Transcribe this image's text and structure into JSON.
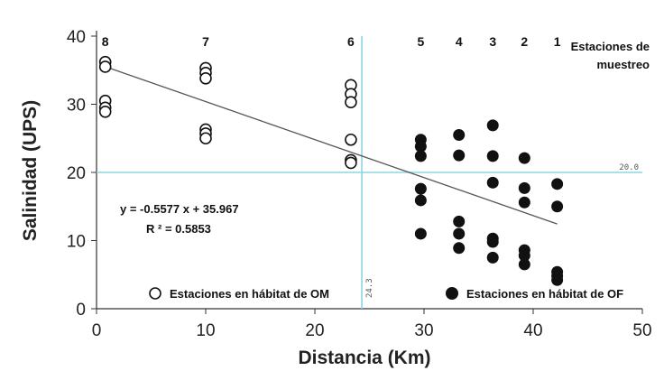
{
  "chart_data": {
    "type": "scatter",
    "xlabel": "Distancia (Km)",
    "ylabel": "Salinidad (UPS)",
    "xlim": [
      0,
      50
    ],
    "ylim": [
      0,
      40
    ],
    "xticks": [
      0,
      10,
      20,
      30,
      40,
      50
    ],
    "yticks": [
      0,
      10,
      20,
      30,
      40
    ],
    "grid": false,
    "series": [
      {
        "name": "Estaciones en hábitat de OM",
        "marker": "open-circle",
        "color": "#111111",
        "points": [
          [
            0.8,
            36.2
          ],
          [
            0.8,
            35.5
          ],
          [
            0.8,
            30.5
          ],
          [
            0.8,
            29.5
          ],
          [
            0.8,
            28.9
          ],
          [
            10.0,
            35.3
          ],
          [
            10.0,
            34.6
          ],
          [
            10.0,
            33.8
          ],
          [
            10.0,
            26.3
          ],
          [
            10.0,
            25.7
          ],
          [
            10.0,
            25.0
          ],
          [
            23.3,
            32.8
          ],
          [
            23.3,
            31.5
          ],
          [
            23.3,
            30.3
          ],
          [
            23.3,
            24.8
          ],
          [
            23.3,
            21.8
          ],
          [
            23.3,
            21.4
          ]
        ]
      },
      {
        "name": "Estaciones en hábitat de OF",
        "marker": "filled-circle",
        "color": "#111111",
        "points": [
          [
            29.7,
            24.8
          ],
          [
            29.7,
            23.8
          ],
          [
            29.7,
            22.4
          ],
          [
            29.7,
            17.6
          ],
          [
            29.7,
            15.9
          ],
          [
            29.7,
            11.0
          ],
          [
            33.2,
            25.5
          ],
          [
            33.2,
            22.5
          ],
          [
            33.2,
            12.8
          ],
          [
            33.2,
            11.0
          ],
          [
            33.2,
            8.9
          ],
          [
            36.3,
            26.9
          ],
          [
            36.3,
            22.4
          ],
          [
            36.3,
            18.5
          ],
          [
            36.3,
            10.3
          ],
          [
            36.3,
            9.8
          ],
          [
            36.3,
            7.5
          ],
          [
            39.2,
            22.1
          ],
          [
            39.2,
            17.7
          ],
          [
            39.2,
            15.6
          ],
          [
            39.2,
            8.6
          ],
          [
            39.2,
            7.8
          ],
          [
            39.2,
            6.5
          ],
          [
            42.2,
            18.3
          ],
          [
            42.2,
            15.0
          ],
          [
            42.2,
            5.4
          ],
          [
            42.2,
            4.8
          ],
          [
            42.2,
            4.2
          ]
        ]
      }
    ],
    "regression": {
      "slope": -0.5577,
      "intercept": 35.967,
      "x_range": [
        0.8,
        42.2
      ],
      "equation_label": "y  =  -0.5577  x  +  35.967",
      "r2_label": "R ² =  0.5853"
    },
    "reference_lines": {
      "color": "#88d8e0",
      "horizontal": {
        "y": 20.0,
        "label": "20.0"
      },
      "vertical": {
        "x": 24.3,
        "label": "24.3"
      }
    },
    "stations": [
      {
        "label": "8",
        "x": 0.8
      },
      {
        "label": "7",
        "x": 10.0
      },
      {
        "label": "6",
        "x": 23.3
      },
      {
        "label": "5",
        "x": 29.7
      },
      {
        "label": "4",
        "x": 33.2
      },
      {
        "label": "3",
        "x": 36.3
      },
      {
        "label": "2",
        "x": 39.2
      },
      {
        "label": "1",
        "x": 42.2
      }
    ],
    "stations_title_lines": [
      "Estaciones de",
      "muestreo"
    ]
  }
}
